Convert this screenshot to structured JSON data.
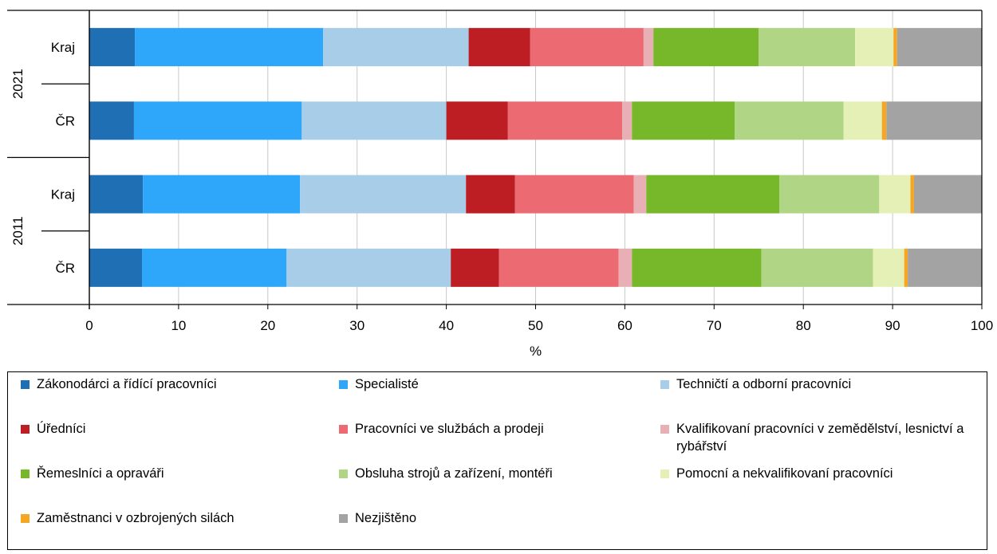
{
  "chart_data": {
    "type": "bar",
    "orientation": "horizontal",
    "stacked": true,
    "groups": [
      {
        "label": "2021",
        "rows": [
          "Kraj",
          "ČR"
        ]
      },
      {
        "label": "2011",
        "rows": [
          "Kraj",
          "ČR"
        ]
      }
    ],
    "categories": [
      "2021 Kraj",
      "2021 ČR",
      "2011 Kraj",
      "2011 ČR"
    ],
    "category_labels": [
      "Kraj",
      "ČR",
      "Kraj",
      "ČR"
    ],
    "xlabel": "%",
    "xlim": [
      0,
      100
    ],
    "xticks": [
      "0",
      "10",
      "20",
      "30",
      "40",
      "50",
      "60",
      "70",
      "80",
      "90",
      "100"
    ],
    "grid": true,
    "legend_position": "bottom",
    "series": [
      {
        "name": "Zákonodárci a řídící pracovníci",
        "color": "#1f6fb4",
        "values": [
          5.1,
          5.0,
          6.0,
          5.9
        ]
      },
      {
        "name": "Specialisté",
        "color": "#2ea7fb",
        "values": [
          21.1,
          18.8,
          17.6,
          16.2
        ]
      },
      {
        "name": "Techničtí a odborní pracovníci",
        "color": "#a7cde8",
        "values": [
          16.3,
          16.2,
          18.6,
          18.4
        ]
      },
      {
        "name": "Úředníci",
        "color": "#bd1e24",
        "values": [
          6.9,
          6.9,
          5.5,
          5.4
        ]
      },
      {
        "name": "Pracovníci ve službách a prodeji",
        "color": "#ec6b73",
        "values": [
          12.7,
          12.8,
          13.3,
          13.4
        ]
      },
      {
        "name": "Kvalifikovaní pracovníci v zemědělství, lesnictví a rybářství",
        "color": "#e8b0b5",
        "values": [
          1.1,
          1.1,
          1.4,
          1.5
        ]
      },
      {
        "name": "Řemeslníci a opraváři",
        "color": "#77b82a",
        "values": [
          11.8,
          11.5,
          14.9,
          14.5
        ]
      },
      {
        "name": "Obsluha strojů a zařízení, montéři",
        "color": "#b0d584",
        "values": [
          10.8,
          12.2,
          11.2,
          12.5
        ]
      },
      {
        "name": "Pomocní a nekvalifikovaní pracovníci",
        "color": "#e5f0b7",
        "values": [
          4.3,
          4.3,
          3.5,
          3.5
        ]
      },
      {
        "name": "Zaměstnanci v ozbrojených silách",
        "color": "#f5a623",
        "values": [
          0.4,
          0.5,
          0.4,
          0.4
        ]
      },
      {
        "name": "Nezjištěno",
        "color": "#a3a3a3",
        "values": [
          9.5,
          10.7,
          7.6,
          8.3
        ]
      }
    ]
  }
}
